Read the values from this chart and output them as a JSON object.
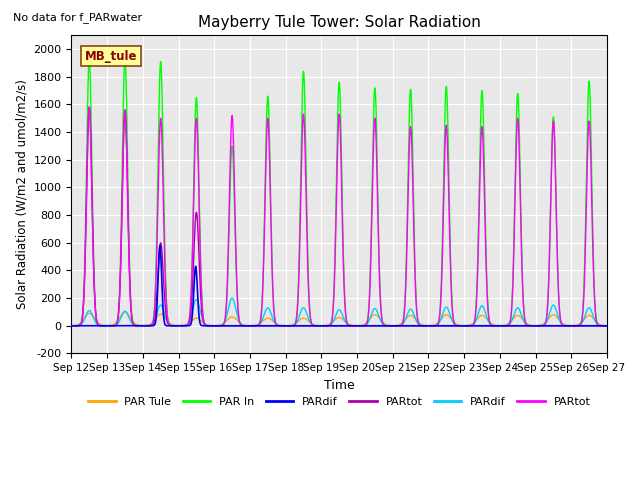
{
  "title": "Mayberry Tule Tower: Solar Radiation",
  "subtitle": "No data for f_PARwater",
  "ylabel": "Solar Radiation (W/m2 and umol/m2/s)",
  "xlabel": "Time",
  "legend_label": "MB_tule",
  "ylim": [
    -200,
    2100
  ],
  "yticks": [
    -200,
    0,
    200,
    400,
    600,
    800,
    1000,
    1200,
    1400,
    1600,
    1800,
    2000
  ],
  "x_start_day": 12,
  "x_end_day": 27,
  "x_tick_days": [
    12,
    13,
    14,
    15,
    16,
    17,
    18,
    19,
    20,
    21,
    22,
    23,
    24,
    25,
    26,
    27
  ],
  "series": {
    "PAR_Tule": {
      "color": "#FFA500",
      "label": "PAR Tule"
    },
    "PAR_In": {
      "color": "#00FF00",
      "label": "PAR In"
    },
    "PARdif_b": {
      "color": "#0000EE",
      "label": "PARdif"
    },
    "PARtot_p": {
      "color": "#AA00AA",
      "label": "PARtot"
    },
    "PARdif_c": {
      "color": "#00CCFF",
      "label": "PARdif"
    },
    "PARtot_m": {
      "color": "#FF00FF",
      "label": "PARtot"
    }
  },
  "bg_color": "#E8E8E8",
  "grid_color": "#FFFFFF",
  "day_peaks": {
    "PAR_Tule": [
      90,
      100,
      85,
      55,
      65,
      55,
      55,
      60,
      80,
      75,
      80,
      75,
      75,
      80,
      75
    ],
    "PAR_In_peaks": [
      1930,
      1940,
      1910,
      1650,
      1300,
      1660,
      1840,
      1760,
      1720,
      1710,
      1730,
      1700,
      1680,
      1510,
      1770
    ],
    "PAR_In_width": [
      2.0,
      2.0,
      2.0,
      2.0,
      2.0,
      2.0,
      2.0,
      2.0,
      2.0,
      2.0,
      2.0,
      2.0,
      2.0,
      2.0,
      2.0
    ],
    "PARdif_b_peaks": [
      0,
      0,
      580,
      430,
      0,
      0,
      0,
      0,
      0,
      0,
      0,
      0,
      0,
      0,
      0
    ],
    "PARtot_p_peaks": [
      1580,
      1560,
      600,
      820,
      0,
      0,
      0,
      0,
      0,
      0,
      0,
      0,
      0,
      0,
      0
    ],
    "PARdif_c_peaks": [
      110,
      105,
      150,
      190,
      200,
      130,
      130,
      115,
      125,
      120,
      135,
      145,
      130,
      150,
      130
    ],
    "PARtot_m_peaks": [
      1580,
      1560,
      1500,
      1500,
      1520,
      1500,
      1530,
      1530,
      1500,
      1440,
      1450,
      1440,
      1500,
      1480,
      1480
    ]
  }
}
